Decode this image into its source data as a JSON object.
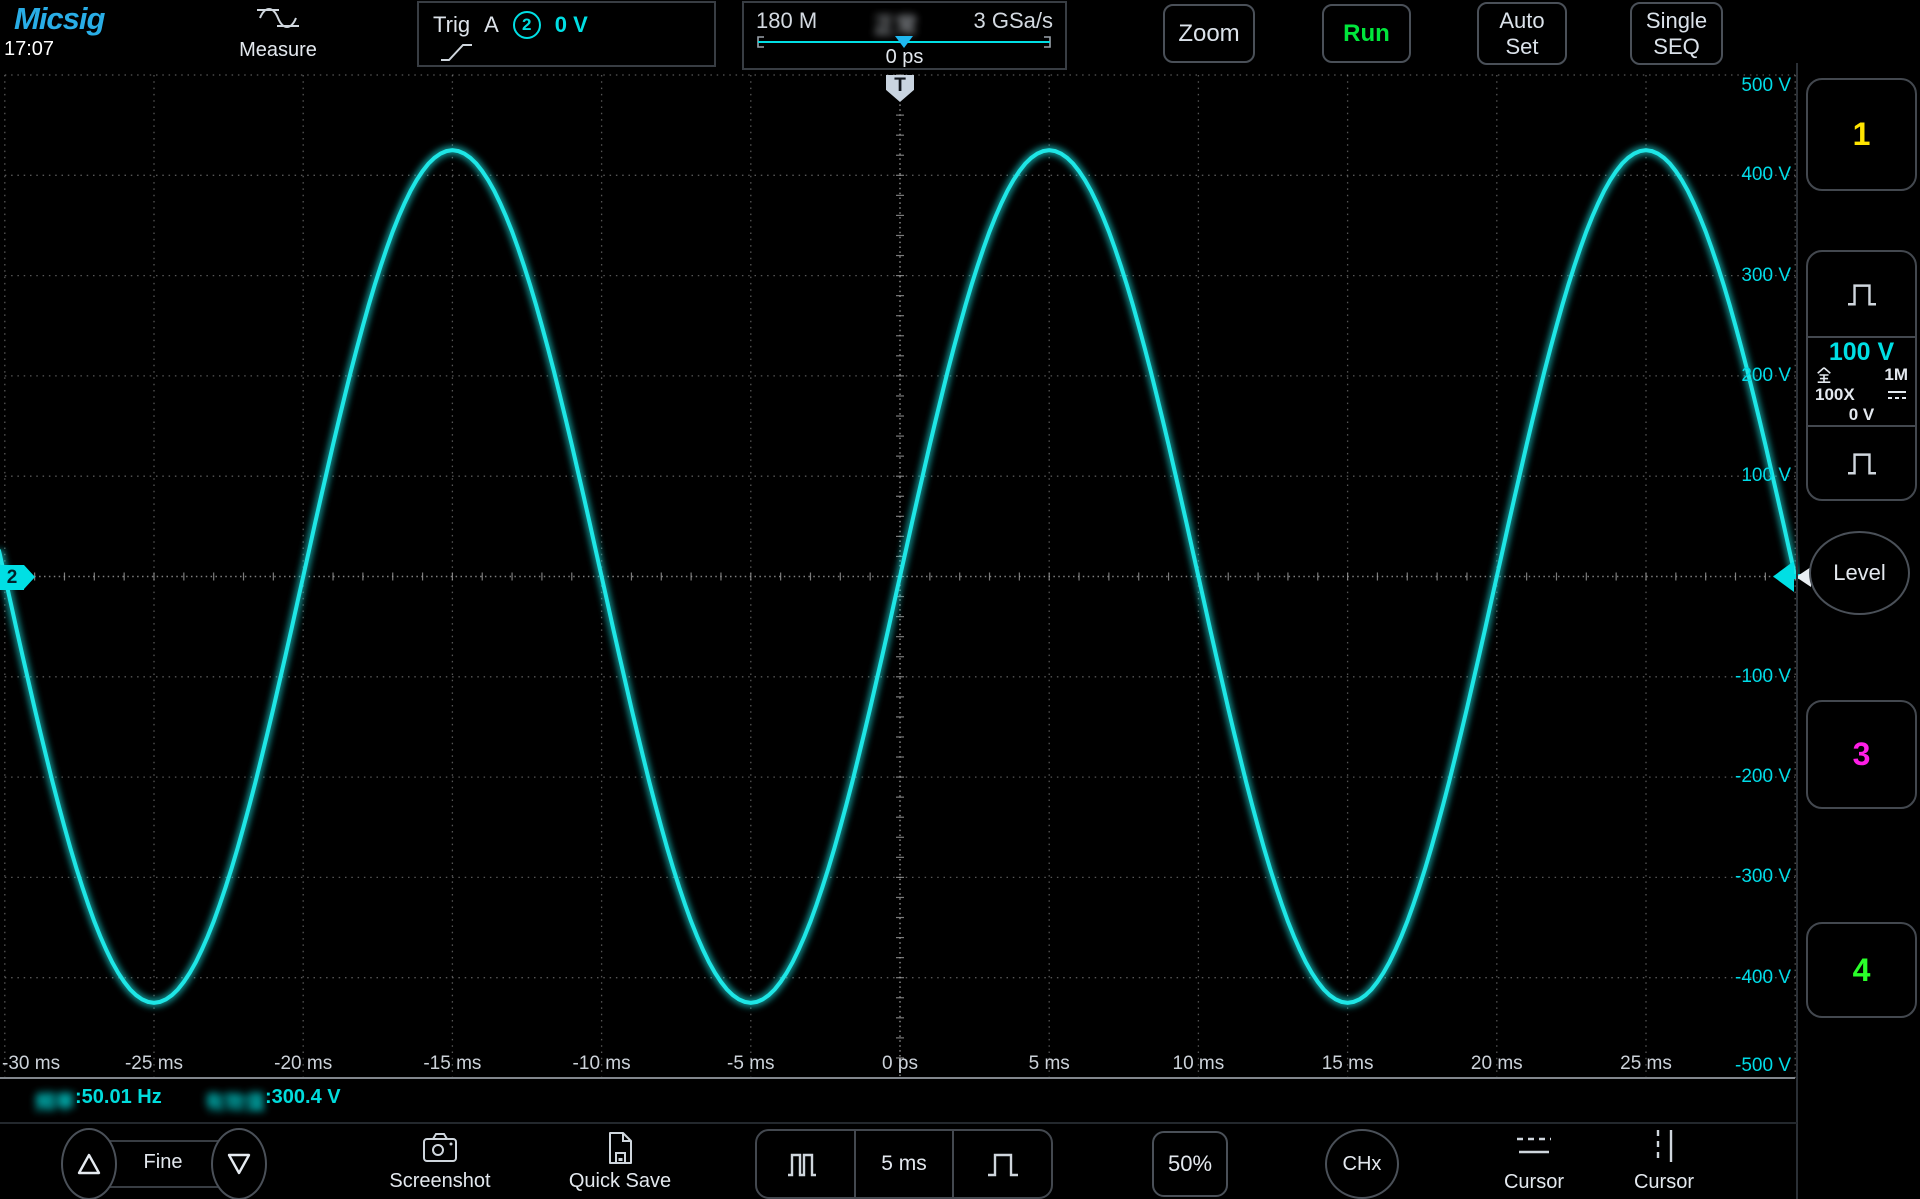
{
  "colors": {
    "accent_cyan": "#00dfe4",
    "ch1_yellow": "#ffe400",
    "ch2_cyan": "#1ee6e6",
    "ch3_magenta": "#ff1ee6",
    "ch4_green": "#2aff2a",
    "run_green": "#00e63c",
    "logo_blue": "#29ade6",
    "grid_gray": "#8c8c8c",
    "axis_text": "#ccd2d9"
  },
  "header": {
    "logo": "Micsig",
    "clock": "17:07",
    "measure_label": "Measure",
    "trigger": {
      "trig": "Trig",
      "source": "A",
      "channel_badge": "2",
      "level": "0 V"
    },
    "timebase": {
      "memory_depth": "180 M",
      "mode_censored": "正常",
      "sample_rate": "3 GSa/s",
      "position": "0 ps"
    },
    "zoom_label": "Zoom",
    "run_label": "Run",
    "autoset_line1": "Auto",
    "autoset_line2": "Set",
    "single_line1": "Single",
    "single_line2": "SEQ"
  },
  "sidebar": {
    "ch1_label": "1",
    "scale_panel": {
      "volts_per_div": "100 V",
      "bandwidth_full": "全",
      "impedance": "1M",
      "probe": "100X",
      "offset": "0 V"
    },
    "level_label": "Level",
    "ch3_label": "3",
    "ch4_label": "4"
  },
  "plot_markers": {
    "trigger_marker": "T",
    "ch2_marker": "2"
  },
  "measurements": {
    "freq_prefix_censored": "频率",
    "freq_value": ":50.01 Hz",
    "rms_prefix_censored": "有效值",
    "rms_value": ":300.4 V"
  },
  "toolbar": {
    "fine_label": "Fine",
    "screenshot_label": "Screenshot",
    "quicksave_label": "Quick Save",
    "timebase_value": "5 ms",
    "percent_label": "50%",
    "chx_label": "CHx",
    "cursor1_label": "Cursor",
    "cursor2_label": "Cursor"
  },
  "chart_data": {
    "type": "line",
    "x_unit": "ms",
    "y_unit": "V",
    "x_range": [
      -30,
      30
    ],
    "y_range": [
      -500,
      500
    ],
    "time_per_div_ms": 5,
    "volts_per_div_v": 100,
    "x_tick_labels": [
      "-30 ms",
      "-25 ms",
      "-20 ms",
      "-15 ms",
      "-10 ms",
      "-5 ms",
      "0 ps",
      "5 ms",
      "10 ms",
      "15 ms",
      "20 ms",
      "25 ms"
    ],
    "y_tick_labels": [
      "500 V",
      "400 V",
      "300 V",
      "200 V",
      "100 V",
      "-100 V",
      "-200 V",
      "-300 V",
      "-400 V",
      "-500 V"
    ],
    "grid": "dotted",
    "legend": "none",
    "series": [
      {
        "name": "CH2",
        "color": "#1ee6e6",
        "shape": "sine",
        "amplitude_v": 425,
        "offset_v": 0,
        "frequency_hz": 50.01,
        "period_ms": 20,
        "peak_time_ms": 5
      }
    ]
  }
}
